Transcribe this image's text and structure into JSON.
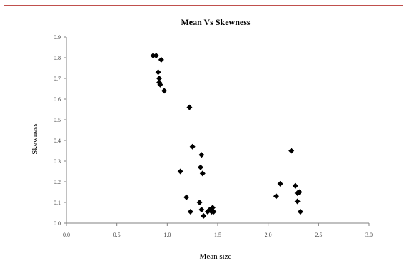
{
  "chart_data": {
    "type": "scatter",
    "title": "Mean Vs Skewness",
    "xlabel": "Mean size",
    "ylabel": "Skewness",
    "xlim": [
      0,
      3
    ],
    "ylim": [
      0,
      0.9
    ],
    "xticks": [
      0,
      0.5,
      1,
      1.5,
      2,
      2.5,
      3
    ],
    "xtick_labels": [
      "0.0",
      "0.5",
      "1.0",
      "1.5",
      "2.0",
      "2.5",
      "3.0"
    ],
    "yticks": [
      0,
      0.1,
      0.2,
      0.3,
      0.4,
      0.5,
      0.6,
      0.7,
      0.8,
      0.9
    ],
    "ytick_labels": [
      "0.0",
      "0.1",
      "0.2",
      "0.3",
      "0.4",
      "0.5",
      "0.6",
      "0.7",
      "0.8",
      "0.9"
    ],
    "grid": false,
    "legend": "none",
    "marker_color": "#000000",
    "frame_color": "#c0504d",
    "series": [
      {
        "x": [
          0.86,
          0.89,
          0.91,
          0.94,
          0.92,
          0.93,
          0.97,
          0.92,
          1.22,
          1.13,
          1.25,
          1.34,
          1.33,
          1.35,
          1.19,
          1.23,
          1.32,
          1.34,
          1.36,
          1.4,
          1.42,
          1.45,
          1.46,
          1.44,
          2.08,
          2.12,
          2.23,
          2.27,
          2.31,
          2.29,
          2.29,
          2.32
        ],
        "y": [
          0.81,
          0.81,
          0.73,
          0.79,
          0.7,
          0.67,
          0.64,
          0.68,
          0.56,
          0.25,
          0.37,
          0.33,
          0.27,
          0.24,
          0.125,
          0.055,
          0.1,
          0.065,
          0.035,
          0.055,
          0.065,
          0.075,
          0.055,
          0.055,
          0.13,
          0.19,
          0.35,
          0.18,
          0.15,
          0.145,
          0.105,
          0.055
        ]
      }
    ]
  }
}
